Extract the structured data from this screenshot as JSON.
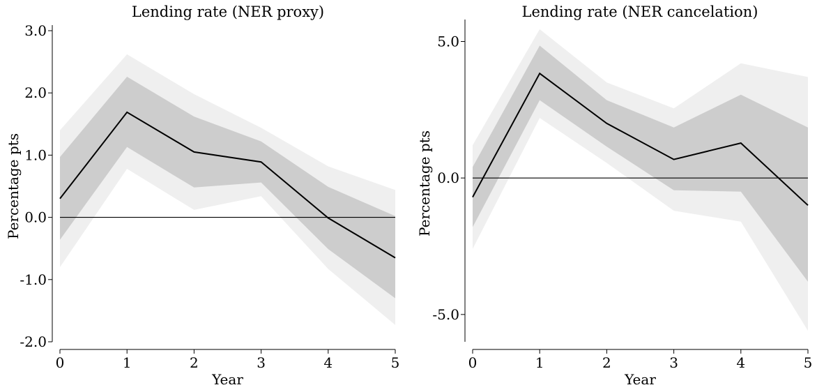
{
  "chart_data": [
    {
      "type": "line",
      "title": "Lending rate (NER proxy)",
      "xlabel": "Year",
      "ylabel": "Percentage pts",
      "x": [
        0,
        1,
        2,
        3,
        4,
        5
      ],
      "xlim": [
        0,
        5
      ],
      "ylim": [
        -2.0,
        3.0
      ],
      "xticks": [
        "0",
        "1",
        "2",
        "3",
        "4",
        "5"
      ],
      "yticks": [
        {
          "value": -2.0,
          "label": "-2.0"
        },
        {
          "value": -1.0,
          "label": "-1.0"
        },
        {
          "value": 0.0,
          "label": "0.0"
        },
        {
          "value": 1.0,
          "label": "1.0"
        },
        {
          "value": 2.0,
          "label": "2.0"
        },
        {
          "value": 3.0,
          "label": "3.0"
        }
      ],
      "grid": false,
      "zero_line": true,
      "series": [
        {
          "values": [
            0.3,
            1.69,
            1.05,
            0.89,
            -0.01,
            -0.65
          ]
        }
      ],
      "bands": [
        {
          "lower": [
            -0.8,
            0.78,
            0.12,
            0.34,
            -0.83,
            -1.73
          ],
          "upper": [
            1.4,
            2.62,
            1.98,
            1.44,
            0.82,
            0.44
          ],
          "color": "#efefef"
        },
        {
          "lower": [
            -0.36,
            1.13,
            0.48,
            0.56,
            -0.51,
            -1.3
          ],
          "upper": [
            0.97,
            2.26,
            1.62,
            1.22,
            0.49,
            0.02
          ],
          "color": "#cdcdcd"
        }
      ]
    },
    {
      "type": "line",
      "title": "Lending rate (NER cancelation)",
      "xlabel": "Year",
      "ylabel": "Percentage pts",
      "x": [
        0,
        1,
        2,
        3,
        4,
        5
      ],
      "xlim": [
        0,
        5
      ],
      "ylim": [
        -6.0,
        5.6
      ],
      "xticks": [
        "0",
        "1",
        "2",
        "3",
        "4",
        "5"
      ],
      "yticks": [
        {
          "value": -5.0,
          "label": "-5.0"
        },
        {
          "value": 0.0,
          "label": "0.0"
        },
        {
          "value": 5.0,
          "label": "5.0"
        }
      ],
      "grid": false,
      "zero_line": true,
      "series": [
        {
          "values": [
            -0.7,
            3.83,
            2.0,
            0.68,
            1.28,
            -1.0
          ]
        }
      ],
      "bands": [
        {
          "lower": [
            -2.6,
            2.2,
            0.55,
            -1.2,
            -1.6,
            -5.6
          ],
          "upper": [
            1.2,
            5.45,
            3.5,
            2.55,
            4.2,
            3.7
          ],
          "color": "#efefef"
        },
        {
          "lower": [
            -1.8,
            2.85,
            1.15,
            -0.45,
            -0.5,
            -3.8
          ],
          "upper": [
            0.4,
            4.85,
            2.85,
            1.85,
            3.05,
            1.85
          ],
          "color": "#cdcdcd"
        }
      ]
    }
  ]
}
